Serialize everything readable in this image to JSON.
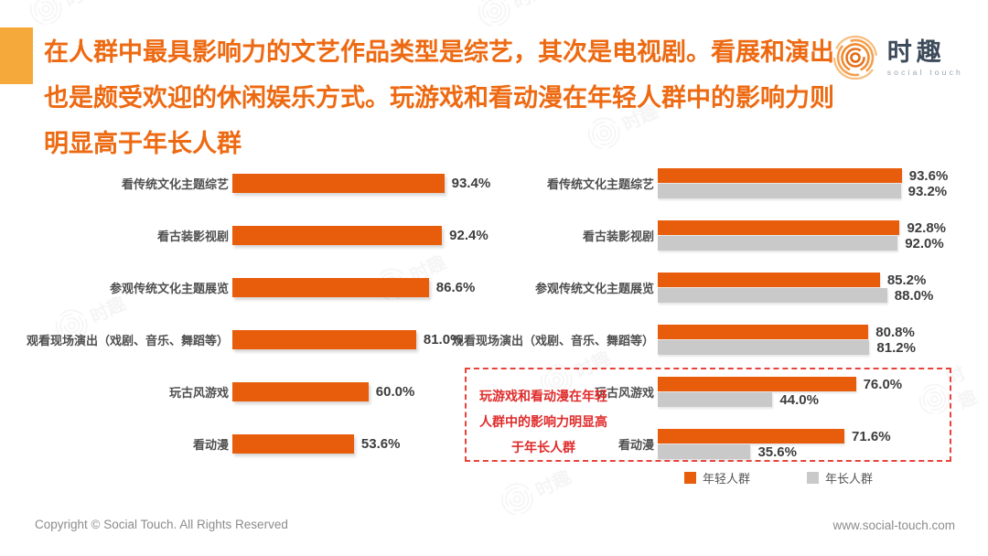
{
  "page": {
    "background": "#FFFFFF",
    "accent_color": "#F6A93B",
    "title_color": "#ED6A12",
    "bar_orange": "#E85D0C",
    "bar_gray": "#C9C9C9",
    "annotation_red": "#E02B2B"
  },
  "header": {
    "title_lines": [
      "在人群中最具影响力的文艺作品类型是综艺，其次是电视剧。看展和演出",
      "也是颇受欢迎的休闲娱乐方式。玩游戏和看动漫在年轻人群中的影响力则",
      "明显高于年长人群"
    ],
    "logo": {
      "brand": "时趣",
      "subtext": "social touch"
    }
  },
  "chart_data": [
    {
      "type": "bar",
      "orientation": "horizontal",
      "categories": [
        "看传统文化主题综艺",
        "看古装影视剧",
        "参观传统文化主题展览",
        "观看现场演出（戏剧、音乐、舞蹈等）",
        "玩古风游戏",
        "看动漫"
      ],
      "values": [
        93.4,
        92.4,
        86.6,
        81.0,
        60.0,
        53.6
      ],
      "unit": "%",
      "bar_color": "#E85D0C",
      "xlim": [
        0,
        100
      ],
      "grid": false,
      "value_labels": true
    },
    {
      "type": "bar",
      "orientation": "horizontal",
      "categories": [
        "看传统文化主题综艺",
        "看古装影视剧",
        "参观传统文化主题展览",
        "观看现场演出（戏剧、音乐、舞蹈等）",
        "玩古风游戏",
        "看动漫"
      ],
      "series": [
        {
          "name": "年轻人群",
          "color": "#E85D0C",
          "values": [
            93.6,
            92.8,
            85.2,
            80.8,
            76.0,
            71.6
          ]
        },
        {
          "name": "年长人群",
          "color": "#C9C9C9",
          "values": [
            93.2,
            92.0,
            88.0,
            81.2,
            44.0,
            35.6
          ]
        }
      ],
      "unit": "%",
      "xlim": [
        0,
        100
      ],
      "grid": false,
      "value_labels": true,
      "legend_position": "bottom-right",
      "annotation": {
        "text_lines": [
          "玩游戏和看动漫在年轻",
          "人群中的影响力明显高",
          "于年长人群"
        ],
        "applies_to": [
          "玩古风游戏",
          "看动漫"
        ]
      }
    }
  ],
  "legend": {
    "items": [
      {
        "label": "年轻人群",
        "color": "#E85D0C"
      },
      {
        "label": "年长人群",
        "color": "#C9C9C9"
      }
    ]
  },
  "footer": {
    "copyright": "Copyright © Social Touch. All Rights Reserved",
    "website": "www.social-touch.com"
  }
}
